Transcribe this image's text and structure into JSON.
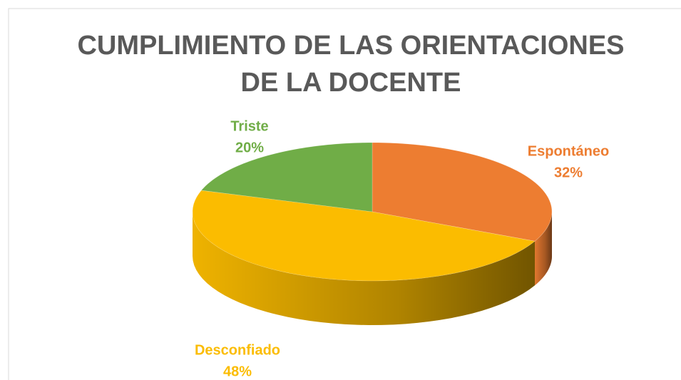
{
  "chart_data": {
    "type": "pie",
    "title": "CUMPLIMIENTO DE LAS ORIENTACIONES DE LA DOCENTE",
    "categories": [
      "Espontáneo",
      "Desconfiado",
      "Triste"
    ],
    "values": [
      32,
      48,
      20
    ],
    "value_labels": [
      "32%",
      "48%",
      "20%"
    ],
    "colors": [
      "#ed7d31",
      "#fbbc00",
      "#70ad47"
    ]
  }
}
